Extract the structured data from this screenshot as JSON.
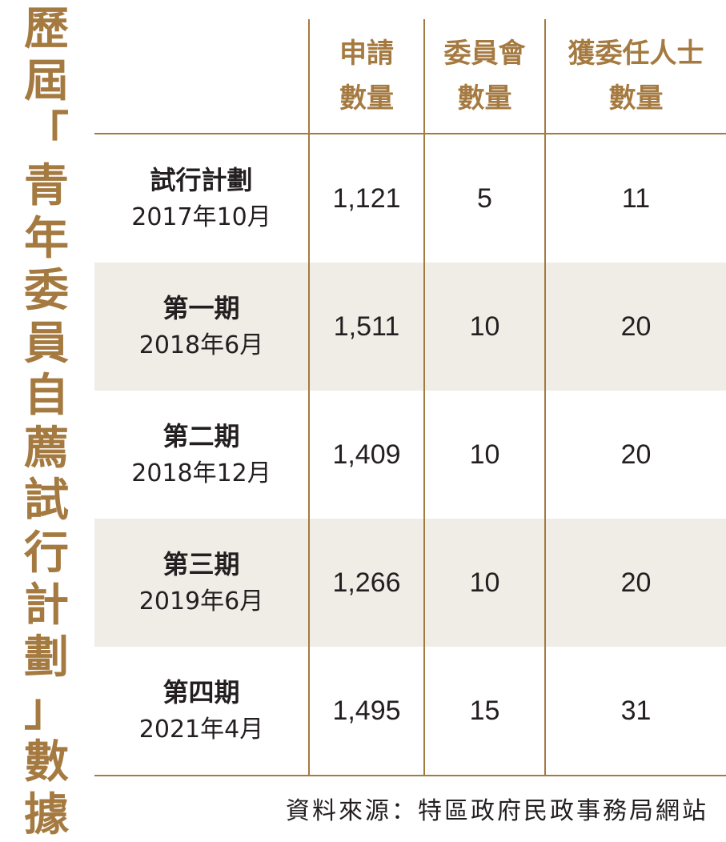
{
  "title_chars": [
    "歷",
    "屆",
    "「",
    "青",
    "年",
    "委",
    "員",
    "自",
    "薦",
    "試",
    "行",
    "計",
    "劃",
    "」",
    "數",
    "據"
  ],
  "header": {
    "col1_line1": "申請",
    "col1_line2": "數量",
    "col2_line1": "委員會",
    "col2_line2": "數量",
    "col3_line1": "獲委任人士",
    "col3_line2": "數量"
  },
  "rows": [
    {
      "name": "試行計劃",
      "date": "2017年10月",
      "applications": "1,121",
      "committees": "5",
      "appointees": "11"
    },
    {
      "name": "第一期",
      "date": "2018年6月",
      "applications": "1,511",
      "committees": "10",
      "appointees": "20"
    },
    {
      "name": "第二期",
      "date": "2018年12月",
      "applications": "1,409",
      "committees": "10",
      "appointees": "20"
    },
    {
      "name": "第三期",
      "date": "2019年6月",
      "applications": "1,266",
      "committees": "10",
      "appointees": "20"
    },
    {
      "name": "第四期",
      "date": "2021年4月",
      "applications": "1,495",
      "committees": "15",
      "appointees": "31"
    }
  ],
  "source": "資料來源：特區政府民政事務局網站",
  "colors": {
    "accent": "#a57a41",
    "row_shade": "#f0ede7",
    "text": "#231f20"
  }
}
